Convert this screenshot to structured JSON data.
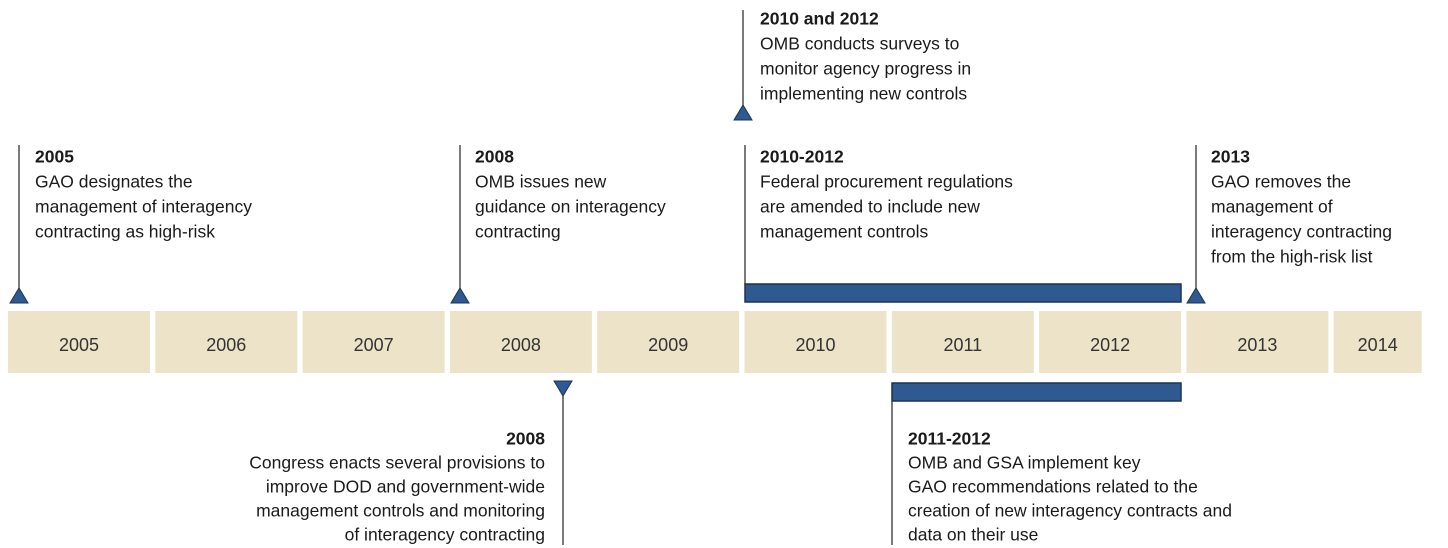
{
  "years": [
    "2005",
    "2006",
    "2007",
    "2008",
    "2009",
    "2010",
    "2011",
    "2012",
    "2013",
    "2014"
  ],
  "events_above": [
    {
      "date": "2005",
      "lines": [
        "GAO designates the",
        "management of interagency",
        "contracting as high-risk"
      ]
    },
    {
      "date": "2008",
      "lines": [
        "OMB issues new",
        "guidance on interagency",
        "contracting"
      ]
    },
    {
      "date": "2010 and 2012",
      "lines": [
        "OMB conducts surveys to",
        "monitor agency progress in",
        "implementing new controls"
      ]
    },
    {
      "date": "2010-2012",
      "lines": [
        "Federal procurement regulations",
        "are amended to include new",
        "management controls"
      ]
    },
    {
      "date": "2013",
      "lines": [
        "GAO removes the",
        "management of",
        "interagency contracting",
        "from the high-risk list"
      ]
    }
  ],
  "events_below": [
    {
      "date": "2008",
      "lines": [
        "Congress enacts several provisions to",
        "improve DOD and government-wide",
        "management controls and monitoring",
        "of interagency contracting"
      ]
    },
    {
      "date": "2011-2012",
      "lines": [
        "OMB and GSA implement key",
        "GAO recommendations related to the",
        "creation of new interagency contracts and",
        "data on their use"
      ]
    }
  ]
}
